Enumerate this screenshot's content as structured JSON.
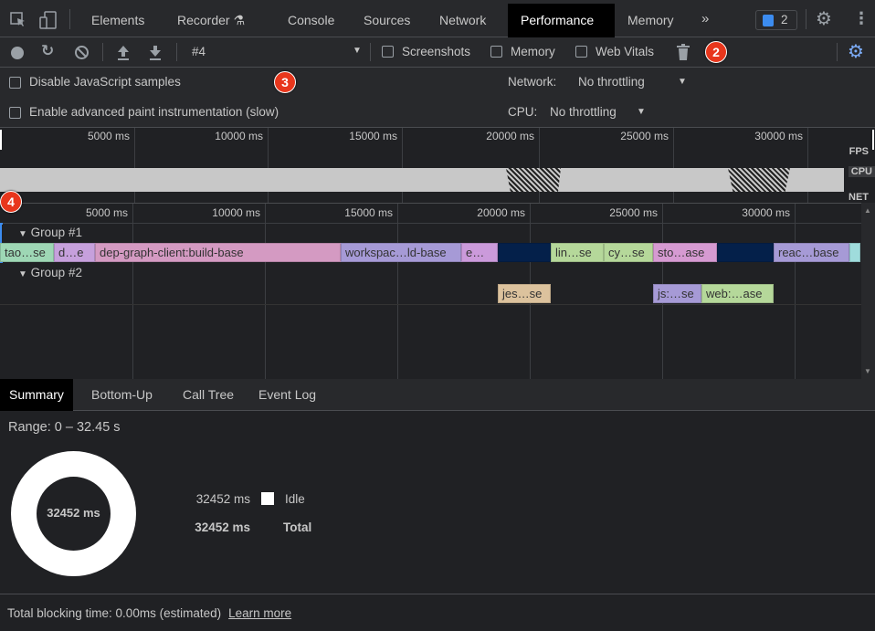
{
  "tabs": [
    "Elements",
    "Recorder",
    "Console",
    "Sources",
    "Network",
    "Performance",
    "Memory"
  ],
  "active_tab": "Performance",
  "issues_count": "2",
  "toolbar": {
    "recording": "#4",
    "screenshots": "Screenshots",
    "memory": "Memory",
    "web_vitals": "Web Vitals"
  },
  "settings": {
    "disable_js": "Disable JavaScript samples",
    "adv_paint": "Enable advanced paint instrumentation (slow)",
    "network_label": "Network:",
    "network_value": "No throttling",
    "cpu_label": "CPU:",
    "cpu_value": "No throttling"
  },
  "overview": {
    "ticks": [
      "5000 ms",
      "10000 ms",
      "15000 ms",
      "20000 ms",
      "25000 ms",
      "30000 ms"
    ],
    "tracks": [
      "FPS",
      "CPU",
      "NET"
    ]
  },
  "timeline": {
    "ticks": [
      "5000 ms",
      "10000 ms",
      "15000 ms",
      "20000 ms",
      "25000 ms",
      "30000 ms"
    ],
    "groups": [
      {
        "name": "Group #1",
        "bars": [
          {
            "label": "tao…se",
            "color": "#9ed7b5"
          },
          {
            "label": "d…e",
            "color": "#c6a0dc"
          },
          {
            "label": "dep-graph-client:build-base",
            "color": "#d49ac2"
          },
          {
            "label": "workspac…ld-base",
            "color": "#a69ad6"
          },
          {
            "label": "e…",
            "color": "#cb9adb"
          },
          {
            "label": "",
            "color": "#04204a"
          },
          {
            "label": "lin…se",
            "color": "#b5d89a"
          },
          {
            "label": "cy…se",
            "color": "#b5d89a"
          },
          {
            "label": "sto…ase",
            "color": "#d69ad2"
          },
          {
            "label": "",
            "color": "#04204a"
          },
          {
            "label": "reac…base",
            "color": "#a69ad6"
          },
          {
            "label": "",
            "color": "#9fdcdc"
          }
        ]
      },
      {
        "name": "Group #2",
        "bars": [
          {
            "label": "jes…se",
            "color": "#dcc29d"
          },
          {
            "label": "js:…se",
            "color": "#a69ad6"
          },
          {
            "label": "web:…ase",
            "color": "#b5d89a"
          }
        ]
      }
    ]
  },
  "bottom_tabs": [
    "Summary",
    "Bottom-Up",
    "Call Tree",
    "Event Log"
  ],
  "summary": {
    "range": "Range: 0 – 32.45 s",
    "donut_total": "32452 ms",
    "idle_value": "32452 ms",
    "idle_label": "Idle",
    "total_value": "32452 ms",
    "total_label": "Total",
    "idle_color": "#ffffff"
  },
  "footer": {
    "text": "Total blocking time: 0.00ms (estimated)",
    "link": "Learn more"
  },
  "annotations": [
    "2",
    "3",
    "4"
  ]
}
